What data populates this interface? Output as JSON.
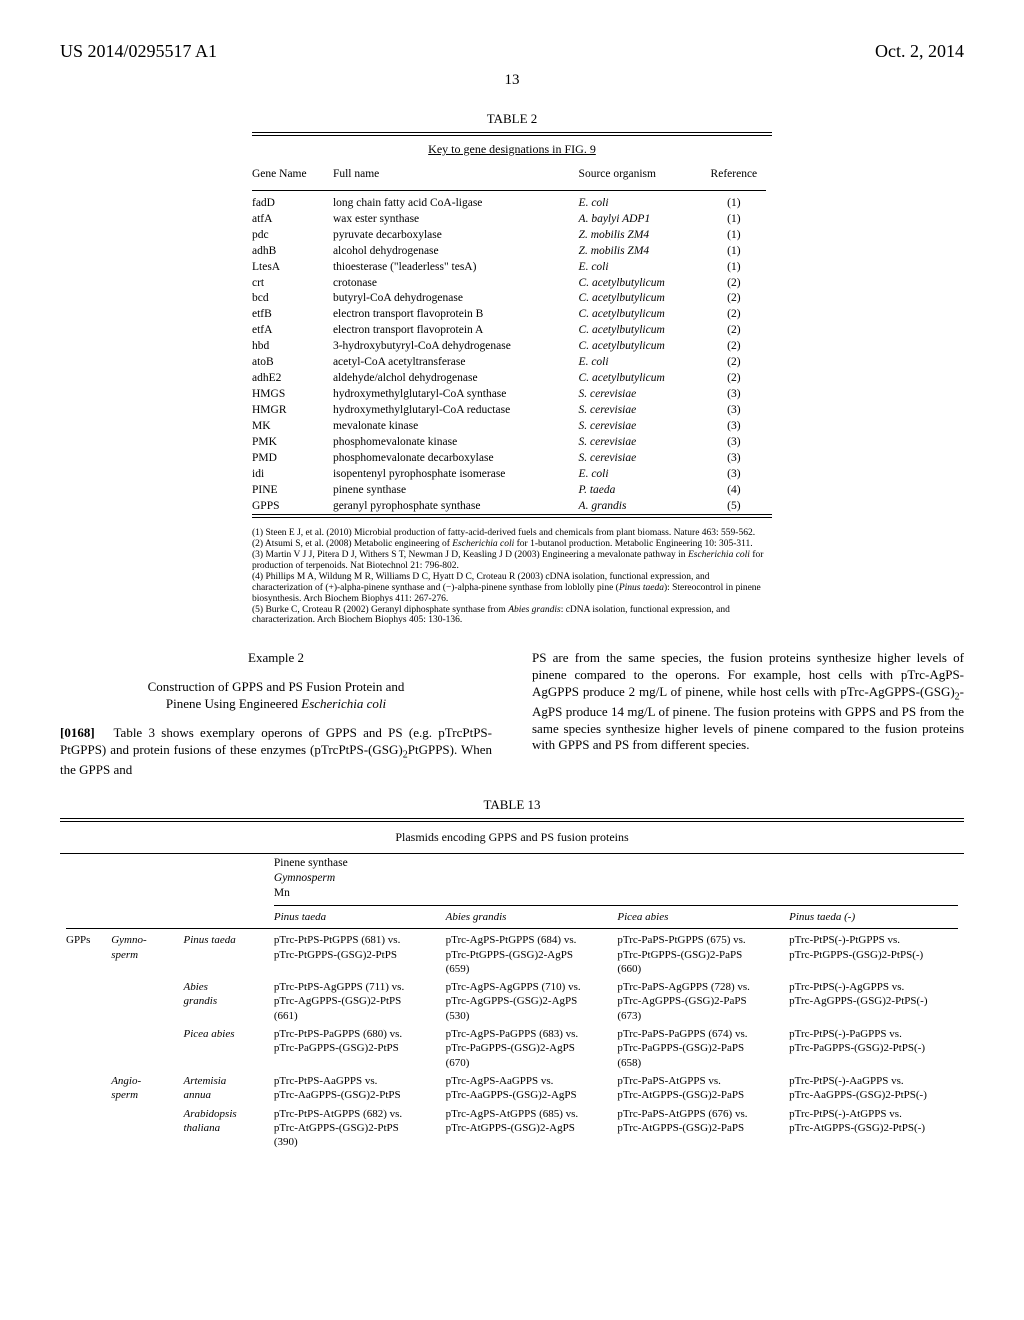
{
  "header": {
    "doc_id": "US 2014/0295517 A1",
    "date": "Oct. 2, 2014",
    "page": "13"
  },
  "table2": {
    "title": "TABLE 2",
    "subtitle": "Key to gene designations in FIG. 9",
    "columns": [
      "Gene Name",
      "Full name",
      "Source organism",
      "Reference"
    ],
    "rows": [
      [
        "fadD",
        "long chain fatty acid CoA-ligase",
        "E. coli",
        "(1)"
      ],
      [
        "atfA",
        "wax ester synthase",
        "A. baylyi ADP1",
        "(1)"
      ],
      [
        "pdc",
        "pyruvate decarboxylase",
        "Z. mobilis ZM4",
        "(1)"
      ],
      [
        "adhB",
        "alcohol dehydrogenase",
        "Z. mobilis ZM4",
        "(1)"
      ],
      [
        "LtesA",
        "thioesterase (\"leaderless\" tesA)",
        "E. coli",
        "(1)"
      ],
      [
        "crt",
        "crotonase",
        "C. acetylbutylicum",
        "(2)"
      ],
      [
        "bcd",
        "butyryl-CoA dehydrogenase",
        "C. acetylbutylicum",
        "(2)"
      ],
      [
        "etfB",
        "electron transport flavoprotein B",
        "C. acetylbutylicum",
        "(2)"
      ],
      [
        "etfA",
        "electron transport flavoprotein A",
        "C. acetylbutylicum",
        "(2)"
      ],
      [
        "hbd",
        "3-hydroxybutyryl-CoA dehydrogenase",
        "C. acetylbutylicum",
        "(2)"
      ],
      [
        "atoB",
        "acetyl-CoA acetyltransferase",
        "E. coli",
        "(2)"
      ],
      [
        "adhE2",
        "aldehyde/alchol dehydrogenase",
        "C. acetylbutylicum",
        "(2)"
      ],
      [
        "HMGS",
        "hydroxymethylglutaryl-CoA synthase",
        "S. cerevisiae",
        "(3)"
      ],
      [
        "HMGR",
        "hydroxymethylglutaryl-CoA reductase",
        "S. cerevisiae",
        "(3)"
      ],
      [
        "MK",
        "mevalonate kinase",
        "S. cerevisiae",
        "(3)"
      ],
      [
        "PMK",
        "phosphomevalonate kinase",
        "S. cerevisiae",
        "(3)"
      ],
      [
        "PMD",
        "phosphomevalonate decarboxylase",
        "S. cerevisiae",
        "(3)"
      ],
      [
        "idi",
        "isopentenyl pyrophosphate isomerase",
        "E. coli",
        "(3)"
      ],
      [
        "PINE",
        "pinene synthase",
        "P. taeda",
        "(4)"
      ],
      [
        "GPPS",
        "geranyl pyrophosphate synthase",
        "A. grandis",
        "(5)"
      ]
    ],
    "refs": [
      "(1) Steen E J, et al. (2010) Microbial production of fatty-acid-derived fuels and chemicals from plant biomass. Nature 463: 559-562.",
      "(2) Atsumi S, et al. (2008) Metabolic engineering of <i>Escherichia coli</i> for 1-butanol production. Metabolic Engineering 10: 305-311.",
      "(3) Martin V J J, Pitera D J, Withers S T, Newman J D, Keasling J D (2003) Engineering a mevalonate pathway in <i>Escherichia coli</i> for production of terpenoids. Nat Biotechnol 21: 796-802.",
      "(4) Phillips M A, Wildung M R, Williams D C, Hyatt D C, Croteau R (2003) cDNA isolation, functional expression, and characterization of (+)-alpha-pinene synthase and (−)-alpha-pinene synthase from loblolly pine (<i>Pinus taeda</i>): Stereocontrol in pinene biosynthesis. Arch Biochem Biophys 411: 267-276.",
      "(5) Burke C, Croteau R (2002) Geranyl diphosphate synthase from <i>Abies grandis</i>: cDNA isolation, functional expression, and characterization. Arch Biochem Biophys 405: 130-136."
    ]
  },
  "example": {
    "title": "Example 2",
    "subtitle_line1": "Construction of GPPS and PS Fusion Protein and",
    "subtitle_line2": "Pinene Using Engineered ",
    "subtitle_species": "Escherichia coli",
    "para_num": "[0168]",
    "left": "Table 3 shows exemplary operons of GPPS and PS (e.g. pTrcPtPS-PtGPPS) and protein fusions of these enzymes (pTrcPtPS-(GSG)",
    "left2": "PtGPPS). When the GPPS and",
    "right": "PS are from the same species, the fusion proteins synthesize higher levels of pinene compared to the operons. For example, host cells with pTrc-AgPS-AgGPPS produce 2 mg/L of pinene, while host cells with pTrc-AgGPPS-(GSG)",
    "right2": "-AgPS produce 14 mg/L of pinene. The fusion proteins with GPPS and PS from the same species synthesize higher levels of pinene compared to the fusion proteins with GPPS and PS from different species."
  },
  "table13": {
    "title": "TABLE 13",
    "caption": "Plasmids encoding GPPS and PS fusion proteins",
    "head_group": "Pinene synthase\nGymnosperm\nMn",
    "col_species": [
      "Pinus taeda",
      "Abies grandis",
      "Picea abies",
      "Pinus taeda (-)"
    ],
    "row_group_label": "GPPs",
    "row_sub1": "Gymno-\nsperm",
    "row_sub2": "Angio-\nsperm",
    "rows": [
      {
        "sp": "Pinus taeda",
        "c": [
          "pTrc-PtPS-PtGPPS (681) vs. pTrc-PtGPPS-(GSG)2-PtPS",
          "pTrc-AgPS-PtGPPS (684) vs. pTrc-PtGPPS-(GSG)2-AgPS (659)",
          "pTrc-PaPS-PtGPPS (675) vs. pTrc-PtGPPS-(GSG)2-PaPS (660)",
          "pTrc-PtPS(-)-PtGPPS vs. pTrc-PtGPPS-(GSG)2-PtPS(-)"
        ]
      },
      {
        "sp": "Abies grandis",
        "c": [
          "pTrc-PtPS-AgGPPS (711) vs. pTrc-AgGPPS-(GSG)2-PtPS (661)",
          "pTrc-AgPS-AgGPPS (710) vs. pTrc-AgGPPS-(GSG)2-AgPS (530)",
          "pTrc-PaPS-AgGPPS (728) vs. pTrc-AgGPPS-(GSG)2-PaPS (673)",
          "pTrc-PtPS(-)-AgGPPS vs. pTrc-AgGPPS-(GSG)2-PtPS(-)"
        ]
      },
      {
        "sp": "Picea abies",
        "c": [
          "pTrc-PtPS-PaGPPS (680) vs. pTrc-PaGPPS-(GSG)2-PtPS",
          "pTrc-AgPS-PaGPPS (683) vs. pTrc-PaGPPS-(GSG)2-AgPS (670)",
          "pTrc-PaPS-PaGPPS (674) vs. pTrc-PaGPPS-(GSG)2-PaPS (658)",
          "pTrc-PtPS(-)-PaGPPS vs. pTrc-PaGPPS-(GSG)2-PtPS(-)"
        ]
      },
      {
        "sp": "Artemisia annua",
        "c": [
          "pTrc-PtPS-AaGPPS vs. pTrc-AaGPPS-(GSG)2-PtPS",
          "pTrc-AgPS-AaGPPS vs. pTrc-AaGPPS-(GSG)2-AgPS",
          "pTrc-PaPS-AtGPPS vs. pTrc-AtGPPS-(GSG)2-PaPS",
          "pTrc-PtPS(-)-AaGPPS vs. pTrc-AaGPPS-(GSG)2-PtPS(-)"
        ]
      },
      {
        "sp": "Arabidopsis thaliana",
        "c": [
          "pTrc-PtPS-AtGPPS (682) vs. pTrc-AtGPPS-(GSG)2-PtPS (390)",
          "pTrc-AgPS-AtGPPS (685) vs. pTrc-AtGPPS-(GSG)2-AgPS",
          "pTrc-PaPS-AtGPPS (676) vs. pTrc-AtGPPS-(GSG)2-PaPS",
          "pTrc-PtPS(-)-AtGPPS vs. pTrc-AtGPPS-(GSG)2-PtPS(-)"
        ]
      }
    ]
  }
}
